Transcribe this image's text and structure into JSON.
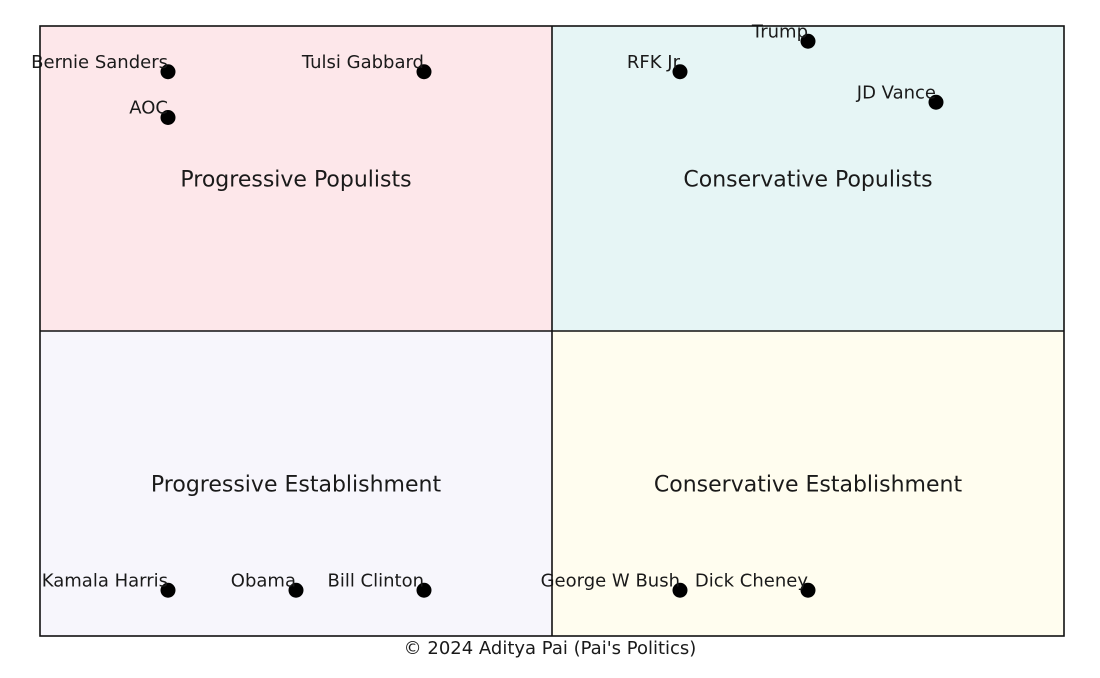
{
  "chart_data": {
    "type": "scatter",
    "title": "",
    "xlabel": "",
    "ylabel": "",
    "xlim": [
      0,
      8
    ],
    "ylim": [
      0,
      8
    ],
    "grid": false,
    "quadrants": [
      {
        "id": "progressive-populists",
        "label": "Progressive Populists",
        "color": "#fde7ea"
      },
      {
        "id": "conservative-populists",
        "label": "Conservative Populists",
        "color": "#e6f5f5"
      },
      {
        "id": "progressive-establishment",
        "label": "Progressive Establishment",
        "color": "#f7f6fc"
      },
      {
        "id": "conservative-establishment",
        "label": "Conservative Establishment",
        "color": "#fffdef"
      }
    ],
    "points": [
      {
        "name": "Bernie Sanders",
        "x": 1,
        "y": 7.4
      },
      {
        "name": "Tulsi Gabbard",
        "x": 3,
        "y": 7.4
      },
      {
        "name": "AOC",
        "x": 1,
        "y": 6.8
      },
      {
        "name": "Trump",
        "x": 6,
        "y": 7.8
      },
      {
        "name": "RFK Jr",
        "x": 5,
        "y": 7.4
      },
      {
        "name": "JD Vance",
        "x": 7,
        "y": 7.0
      },
      {
        "name": "Kamala Harris",
        "x": 1,
        "y": 0.6
      },
      {
        "name": "Obama",
        "x": 2,
        "y": 0.6
      },
      {
        "name": "Bill Clinton",
        "x": 3,
        "y": 0.6
      },
      {
        "name": "George W Bush",
        "x": 5,
        "y": 0.6
      },
      {
        "name": "Dick Cheney",
        "x": 6,
        "y": 0.6
      }
    ]
  },
  "footer": {
    "copyright": "© 2024 Aditya Pai (Pai's Politics)"
  }
}
